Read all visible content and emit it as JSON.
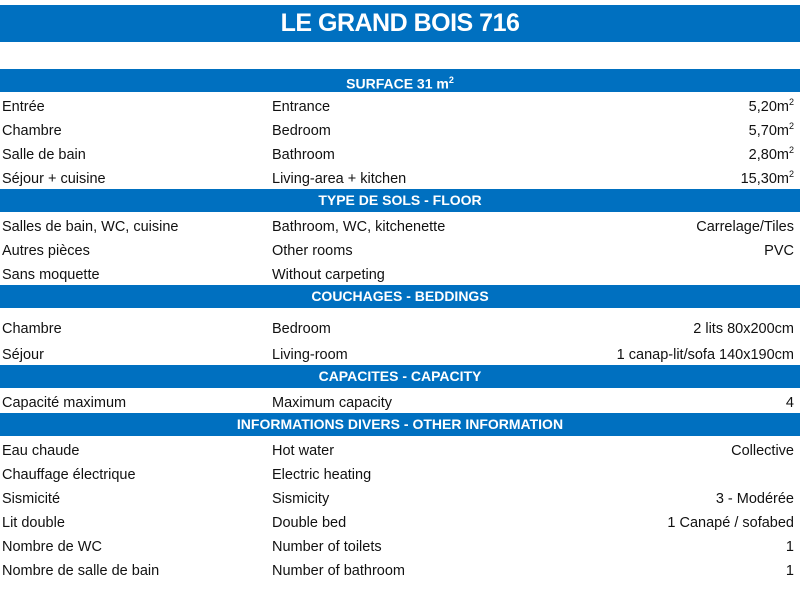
{
  "title": "LE GRAND BOIS 716",
  "accent_color": "#0070C0",
  "sections": [
    {
      "header": "SURFACE 31 m",
      "header_sup": "2",
      "rows": [
        {
          "fr": "Entrée",
          "en": "Entrance",
          "value": "5,20m",
          "sup": "2"
        },
        {
          "fr": "Chambre",
          "en": "Bedroom",
          "value": "5,70m",
          "sup": "2"
        },
        {
          "fr": "Salle de bain",
          "en": "Bathroom",
          "value": "2,80m",
          "sup": "2"
        },
        {
          "fr": "Séjour + cuisine",
          "en": "Living-area + kitchen",
          "value": "15,30m",
          "sup": "2"
        }
      ]
    },
    {
      "header": "TYPE DE SOLS - FLOOR",
      "rows": [
        {
          "fr": "Salles de bain, WC, cuisine",
          "en": "Bathroom, WC, kitchenette",
          "value": "Carrelage/Tiles"
        },
        {
          "fr": "Autres pièces",
          "en": "Other rooms",
          "value": "PVC"
        },
        {
          "fr": "Sans moquette",
          "en": "Without carpeting",
          "value": ""
        }
      ]
    },
    {
      "header": "COUCHAGES - BEDDINGS",
      "rows": [
        {
          "fr": "Chambre",
          "en": "Bedroom",
          "value": "2 lits 80x200cm",
          "tall": "tall"
        },
        {
          "fr": "Séjour",
          "en": "Living-room",
          "value": "1 canap-lit/sofa 140x190cm",
          "tall": "mid"
        }
      ]
    },
    {
      "header": "CAPACITES - CAPACITY",
      "rows": [
        {
          "fr": "Capacité maximum",
          "en": "Maximum capacity",
          "value": "4"
        }
      ]
    },
    {
      "header": "INFORMATIONS DIVERS - OTHER INFORMATION",
      "rows": [
        {
          "fr": "Eau chaude",
          "en": "Hot water",
          "value": "Collective"
        },
        {
          "fr": "Chauffage électrique",
          "en": "Electric heating",
          "value": ""
        },
        {
          "fr": "Sismicité",
          "en": "Sismicity",
          "value": "3 - Modérée"
        },
        {
          "fr": "Lit double",
          "en": "Double bed",
          "value": "1 Canapé / sofabed"
        },
        {
          "fr": "Nombre de WC",
          "en": "Number of toilets",
          "value": "1"
        },
        {
          "fr": "Nombre de salle de bain",
          "en": "Number of bathroom",
          "value": "1"
        }
      ]
    }
  ]
}
